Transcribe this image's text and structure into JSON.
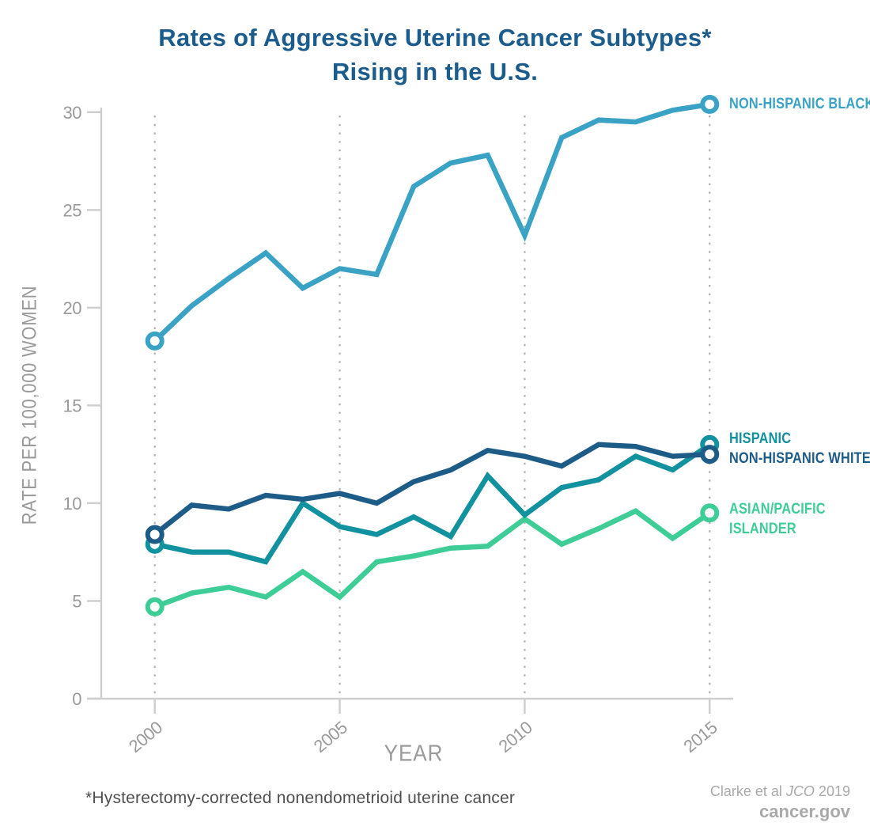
{
  "title": {
    "line1": "Rates of Aggressive Uterine Cancer Subtypes*",
    "line2": "Rising in the U.S."
  },
  "footnote": "*Hysterectomy-corrected nonendometrioid uterine cancer",
  "attribution": {
    "authors": "Clarke et al",
    "journal": "JCO",
    "year": "2019",
    "site": "cancer.gov"
  },
  "colors": {
    "title": "#1b5c8d",
    "axis_text": "#9a9a9a",
    "axis_line": "#cfcfcf",
    "grid_dots": "#b0b0b0",
    "footnote_text": "#4f4f4f",
    "attribution_text": "#a9a9a9"
  },
  "chart_data": {
    "type": "line",
    "title": "Rates of Aggressive Uterine Cancer Subtypes* Rising in the U.S.",
    "xlabel": "YEAR",
    "ylabel": "RATE PER 100,000 WOMEN",
    "x": [
      2000,
      2001,
      2002,
      2003,
      2004,
      2005,
      2006,
      2007,
      2008,
      2009,
      2010,
      2011,
      2012,
      2013,
      2014,
      2015
    ],
    "xticks": [
      2000,
      2005,
      2010,
      2015
    ],
    "yticks": [
      0,
      5,
      10,
      15,
      20,
      25,
      30
    ],
    "ylim": [
      0,
      30.5
    ],
    "grid": "dotted vertical lines at xticks",
    "legend_position": "labels at right end of each line",
    "markers": "open circles at first and last data points",
    "series": [
      {
        "name": "Non-Hispanic Black",
        "label": "NON-HISPANIC BLACK",
        "color": "#3aa2c5",
        "values": [
          18.3,
          20.1,
          21.5,
          22.8,
          21.0,
          22.0,
          21.7,
          26.2,
          27.4,
          27.8,
          23.7,
          28.7,
          29.6,
          29.5,
          30.1,
          30.4
        ]
      },
      {
        "name": "Hispanic",
        "label": "HISPANIC",
        "color": "#12919f",
        "values": [
          7.9,
          7.5,
          7.5,
          7.0,
          10.0,
          8.8,
          8.4,
          9.3,
          8.3,
          11.4,
          9.4,
          10.8,
          11.2,
          12.4,
          11.7,
          13.0
        ]
      },
      {
        "name": "Non-Hispanic White",
        "label": "NON-HISPANIC WHITE",
        "color": "#1e5c88",
        "values": [
          8.4,
          9.9,
          9.7,
          10.4,
          10.2,
          10.5,
          10.0,
          11.1,
          11.7,
          12.7,
          12.4,
          11.9,
          13.0,
          12.9,
          12.4,
          12.5
        ]
      },
      {
        "name": "Asian/Pacific Islander",
        "label": "ASIAN/PACIFIC ISLANDER",
        "color": "#3ecd97",
        "values": [
          4.7,
          5.4,
          5.7,
          5.2,
          6.5,
          5.2,
          7.0,
          7.3,
          7.7,
          7.8,
          9.2,
          7.9,
          8.7,
          9.6,
          8.2,
          9.5
        ]
      }
    ]
  }
}
